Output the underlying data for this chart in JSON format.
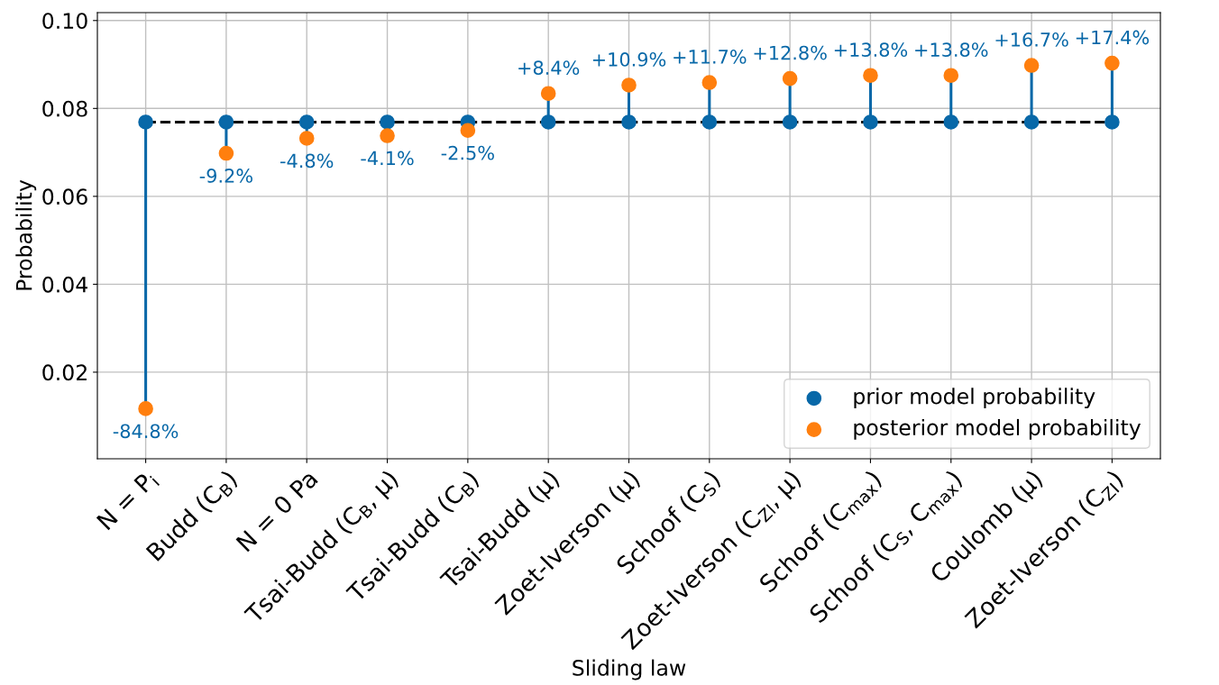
{
  "chart_data": {
    "type": "lollipop",
    "xlabel": "Sliding law",
    "ylabel": "Probability",
    "categories": [
      "N = P$_{i}$",
      "Budd (C$_{B}$)",
      "N = 0 Pa",
      "Tsai-Budd (C$_{B}$, μ)",
      "Tsai-Budd (C$_{B}$)",
      "Tsai-Budd (μ)",
      "Zoet-Iverson (μ)",
      "Schoof (C$_{S}$)",
      "Zoet-Iverson (C$_{ZI}$, μ)",
      "Schoof (C$_{max}$)",
      "Schoof (C$_{S}$, C$_{max}$)",
      "Coulomb (μ)",
      "Zoet-Iverson (C$_{ZI}$)"
    ],
    "series": [
      {
        "name": "prior model probability",
        "color": "#0868a8",
        "values": [
          0.0769,
          0.0769,
          0.0769,
          0.0769,
          0.0769,
          0.0769,
          0.0769,
          0.0769,
          0.0769,
          0.0769,
          0.0769,
          0.0769,
          0.0769
        ]
      },
      {
        "name": "posterior model probability",
        "color": "#ff7f0e",
        "values": [
          0.0117,
          0.0698,
          0.0732,
          0.0738,
          0.075,
          0.0834,
          0.0853,
          0.0859,
          0.0868,
          0.0875,
          0.0875,
          0.0898,
          0.0903
        ]
      }
    ],
    "annotations": [
      {
        "text": "-84.8%",
        "x": "N = P$_{i}$",
        "y": 0.0117
      },
      {
        "text": "-9.2%",
        "x": "Budd (C$_{B}$)",
        "y": 0.0698
      },
      {
        "text": "-4.8%",
        "x": "N = 0 Pa",
        "y": 0.0732
      },
      {
        "text": "-4.1%",
        "x": "Tsai-Budd (C$_{B}$, μ)",
        "y": 0.0738
      },
      {
        "text": "-2.5%",
        "x": "Tsai-Budd (C$_{B}$)",
        "y": 0.075
      },
      {
        "text": "+8.4%",
        "x": "Tsai-Budd (μ)",
        "y": 0.0834
      },
      {
        "text": "+10.9%",
        "x": "Zoet-Iverson (μ)",
        "y": 0.0853
      },
      {
        "text": "+11.7%",
        "x": "Schoof (C$_{S}$)",
        "y": 0.0859
      },
      {
        "text": "+12.8%",
        "x": "Zoet-Iverson (C$_{ZI}$, μ)",
        "y": 0.0868
      },
      {
        "text": "+13.8%",
        "x": "Schoof (C$_{max}$)",
        "y": 0.0875
      },
      {
        "text": "+13.8%",
        "x": "Schoof (C$_{S}$, C$_{max}$)",
        "y": 0.0875
      },
      {
        "text": "+16.7%",
        "x": "Coulomb (μ)",
        "y": 0.0898
      },
      {
        "text": "+17.4%",
        "x": "Zoet-Iverson (C$_{ZI}$)",
        "y": 0.0903
      }
    ],
    "ylim": [
      0.0003,
      0.1018
    ],
    "yticks": [
      0.02,
      0.04,
      0.06,
      0.08,
      {
        "value": 0.1,
        "label": "0.10"
      }
    ],
    "ref_lines": [
      {
        "axis": "y",
        "value": 0.0769,
        "color": "#000000",
        "line_style": "dashed"
      }
    ],
    "grid": true,
    "legend": "lower right",
    "marker": "circle"
  }
}
